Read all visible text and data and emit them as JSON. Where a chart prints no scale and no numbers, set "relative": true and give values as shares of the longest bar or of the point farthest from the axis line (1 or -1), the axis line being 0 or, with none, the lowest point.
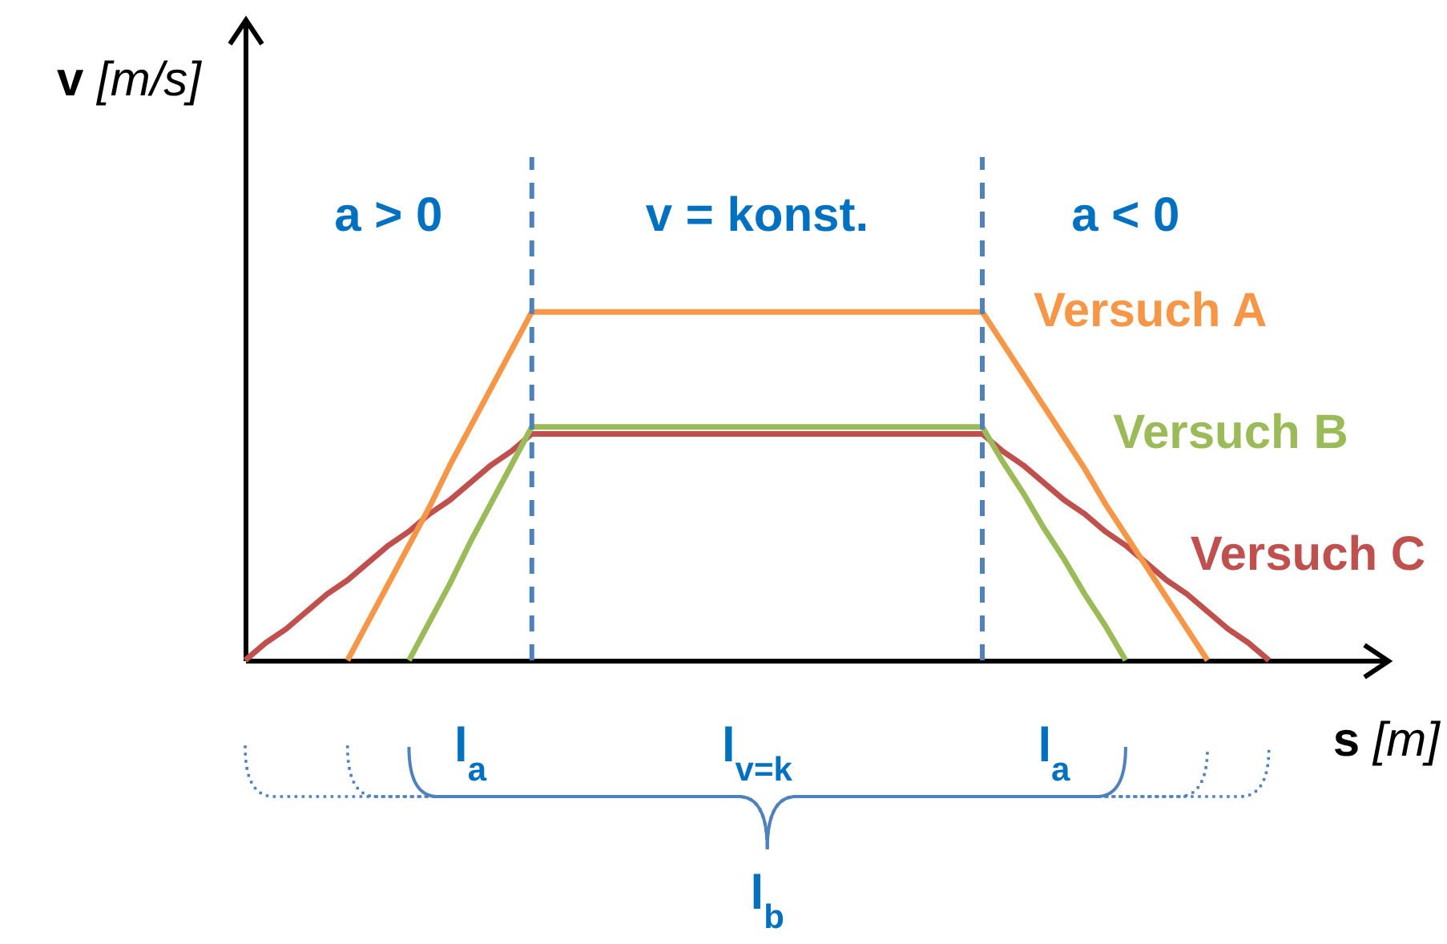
{
  "chart_data": {
    "type": "line",
    "relative": true,
    "ylabel": "v [m/s]",
    "xlabel": "s [m]",
    "categories": [
      null,
      null,
      null,
      null,
      null,
      null,
      null,
      null,
      null,
      null,
      null,
      null,
      null,
      null,
      null,
      null,
      null,
      null,
      null,
      null,
      null,
      null,
      null,
      null,
      null,
      null,
      null,
      null,
      null,
      null,
      null,
      null,
      null,
      null,
      null,
      null,
      null,
      null,
      null,
      null,
      null,
      null,
      null,
      null,
      null,
      null,
      null,
      null,
      null,
      null,
      null
    ],
    "series": [
      {
        "name": "Versuch A",
        "color": "#f79646",
        "values": [
          null,
          null,
          null,
          null,
          null,
          0,
          0.11,
          0.22,
          0.33,
          0.44,
          0.56,
          0.67,
          0.78,
          0.89,
          1,
          1,
          1,
          1,
          1,
          1,
          1,
          1,
          1,
          1,
          1,
          1,
          1,
          1,
          1,
          1,
          1,
          1,
          1,
          1,
          1,
          1,
          1,
          0.91,
          0.82,
          0.73,
          0.64,
          0.55,
          0.45,
          0.36,
          0.27,
          0.18,
          0.09,
          0,
          null,
          null,
          null
        ]
      },
      {
        "name": "Versuch B",
        "color": "#9bbb59",
        "values": [
          null,
          null,
          null,
          null,
          null,
          null,
          null,
          null,
          0,
          0.11,
          0.22,
          0.34,
          0.45,
          0.56,
          0.67,
          0.67,
          0.67,
          0.67,
          0.67,
          0.67,
          0.67,
          0.67,
          0.67,
          0.67,
          0.67,
          0.67,
          0.67,
          0.67,
          0.67,
          0.67,
          0.67,
          0.67,
          0.67,
          0.67,
          0.67,
          0.67,
          0.67,
          0.57,
          0.48,
          0.38,
          0.29,
          0.19,
          0.1,
          0,
          null,
          null,
          null,
          null,
          null,
          null,
          null
        ]
      },
      {
        "name": "Versuch C",
        "color": "#c0504d",
        "values": [
          0,
          0.05,
          0.09,
          0.14,
          0.19,
          0.23,
          0.28,
          0.33,
          0.37,
          0.42,
          0.46,
          0.51,
          0.56,
          0.6,
          0.65,
          0.65,
          0.65,
          0.65,
          0.65,
          0.65,
          0.65,
          0.65,
          0.65,
          0.65,
          0.65,
          0.65,
          0.65,
          0.65,
          0.65,
          0.65,
          0.65,
          0.65,
          0.65,
          0.65,
          0.65,
          0.65,
          0.65,
          0.6,
          0.56,
          0.51,
          0.46,
          0.42,
          0.37,
          0.33,
          0.28,
          0.23,
          0.19,
          0.14,
          0.09,
          0.05,
          0
        ]
      }
    ],
    "annotations": [
      "a > 0",
      "v = konst.",
      "a < 0",
      "l$_{a}$",
      "l$_{v=k}$",
      "l$_{a}$",
      "l$_{b}$"
    ]
  }
}
